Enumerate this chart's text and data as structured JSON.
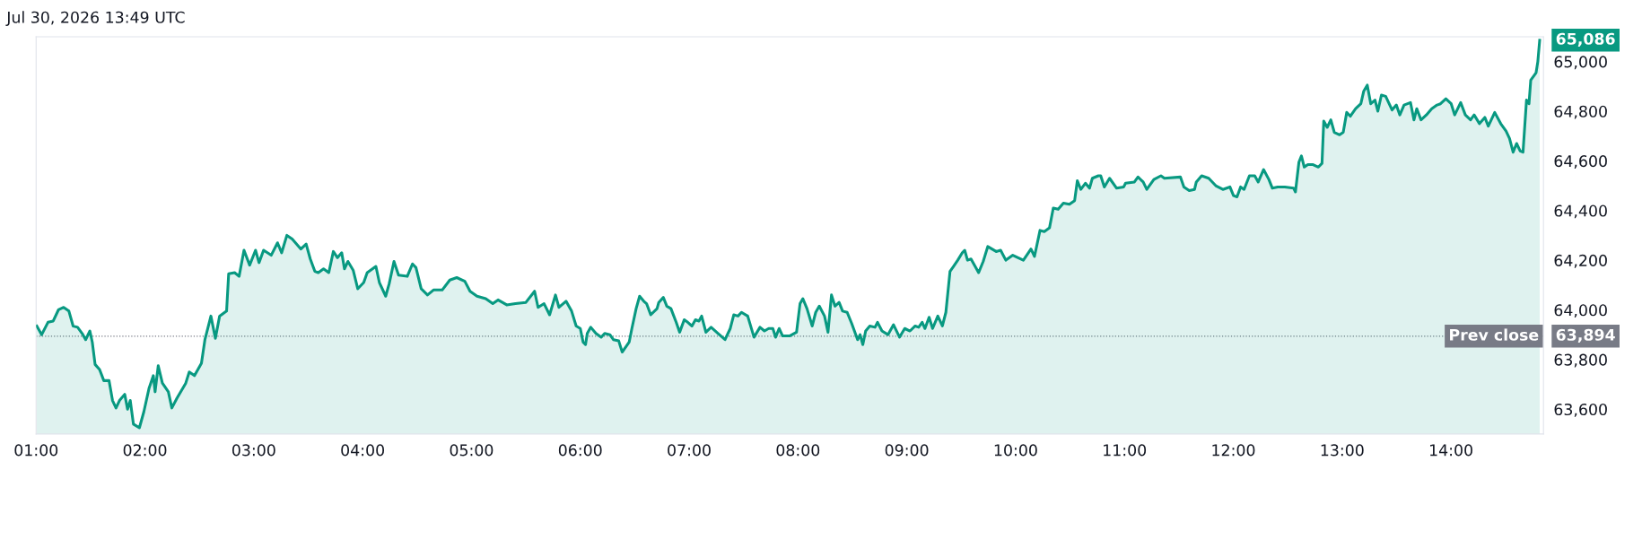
{
  "chart_data": {
    "type": "area",
    "annotations": [
      "Jul 30, 2026 13:49 UTC",
      "65,086",
      "63,894"
    ],
    "x": [
      1.006,
      1.051,
      1.109,
      1.157,
      1.205,
      1.253,
      1.301,
      1.34,
      1.381,
      1.423,
      1.455,
      1.494,
      1.516,
      1.542,
      1.583,
      1.622,
      1.67,
      1.702,
      1.734,
      1.766,
      1.814,
      1.84,
      1.865,
      1.894,
      1.949,
      1.99,
      2.038,
      2.077,
      2.093,
      2.122,
      2.16,
      2.215,
      2.247,
      2.295,
      2.375,
      2.407,
      2.455,
      2.519,
      2.551,
      2.606,
      2.647,
      2.686,
      2.75,
      2.769,
      2.824,
      2.865,
      2.91,
      2.962,
      3.016,
      3.048,
      3.09,
      3.16,
      3.218,
      3.256,
      3.304,
      3.353,
      3.433,
      3.481,
      3.519,
      3.561,
      3.593,
      3.641,
      3.689,
      3.731,
      3.769,
      3.808,
      3.833,
      3.865,
      3.913,
      3.955,
      4.01,
      4.042,
      4.122,
      4.154,
      4.212,
      4.244,
      4.288,
      4.33,
      4.41,
      4.458,
      4.49,
      4.538,
      4.596,
      4.651,
      4.731,
      4.801,
      4.865,
      4.939,
      4.987,
      5.051,
      5.131,
      5.196,
      5.244,
      5.324,
      5.404,
      5.5,
      5.58,
      5.612,
      5.667,
      5.718,
      5.772,
      5.804,
      5.869,
      5.92,
      5.962,
      6.0,
      6.026,
      6.048,
      6.064,
      6.096,
      6.144,
      6.192,
      6.224,
      6.272,
      6.304,
      6.353,
      6.385,
      6.449,
      6.474,
      6.513,
      6.545,
      6.583,
      6.609,
      6.647,
      6.705,
      6.721,
      6.763,
      6.795,
      6.833,
      6.881,
      6.913,
      6.955,
      6.987,
      7.026,
      7.058,
      7.09,
      7.115,
      7.154,
      7.202,
      7.266,
      7.33,
      7.378,
      7.41,
      7.449,
      7.481,
      7.538,
      7.596,
      7.651,
      7.692,
      7.731,
      7.769,
      7.795,
      7.827,
      7.859,
      7.923,
      7.987,
      8.019,
      8.045,
      8.083,
      8.131,
      8.163,
      8.196,
      8.244,
      8.276,
      8.308,
      8.34,
      8.378,
      8.41,
      8.452,
      8.494,
      8.548,
      8.571,
      8.596,
      8.622,
      8.66,
      8.708,
      8.731,
      8.772,
      8.827,
      8.878,
      8.933,
      8.981,
      9.029,
      9.077,
      9.109,
      9.141,
      9.167,
      9.205,
      9.237,
      9.285,
      9.327,
      9.359,
      9.397,
      9.429,
      9.468,
      9.51,
      9.532,
      9.558,
      9.59,
      9.66,
      9.702,
      9.744,
      9.821,
      9.862,
      9.91,
      9.974,
      10.071,
      10.141,
      10.173,
      10.224,
      10.263,
      10.311,
      10.346,
      10.391,
      10.439,
      10.494,
      10.542,
      10.567,
      10.599,
      10.641,
      10.679,
      10.705,
      10.76,
      10.782,
      10.815,
      10.863,
      10.928,
      10.993,
      11.01,
      11.091,
      11.124,
      11.172,
      11.205,
      11.27,
      11.335,
      11.367,
      11.514,
      11.546,
      11.595,
      11.644,
      11.66,
      11.709,
      11.774,
      11.839,
      11.904,
      11.969,
      12.002,
      12.034,
      12.067,
      12.099,
      12.148,
      12.197,
      12.229,
      12.278,
      12.327,
      12.359,
      12.408,
      12.473,
      12.554,
      12.571,
      12.603,
      12.626,
      12.652,
      12.685,
      12.733,
      12.782,
      12.815,
      12.831,
      12.863,
      12.896,
      12.928,
      12.977,
      13.01,
      13.042,
      13.075,
      13.124,
      13.172,
      13.198,
      13.231,
      13.263,
      13.302,
      13.328,
      13.361,
      13.4,
      13.459,
      13.498,
      13.53,
      13.569,
      13.628,
      13.66,
      13.686,
      13.725,
      13.774,
      13.823,
      13.872,
      13.904,
      13.953,
      14.002,
      14.034,
      14.089,
      14.132,
      14.18,
      14.213,
      14.262,
      14.311,
      14.343,
      14.402,
      14.457,
      14.506,
      14.538,
      14.571,
      14.603,
      14.636,
      14.662,
      14.694,
      14.717,
      14.733,
      14.782,
      14.798,
      14.815
    ],
    "series": [
      {
        "color": "#089981",
        "values": [
          63935,
          63900,
          63950,
          63955,
          64000,
          64010,
          63995,
          63935,
          63930,
          63905,
          63880,
          63915,
          63870,
          63780,
          63760,
          63715,
          63715,
          63635,
          63605,
          63635,
          63660,
          63600,
          63635,
          63540,
          63525,
          63590,
          63685,
          63735,
          63670,
          63775,
          63705,
          63670,
          63605,
          63645,
          63705,
          63750,
          63735,
          63785,
          63880,
          63975,
          63885,
          63975,
          63995,
          64145,
          64150,
          64135,
          64240,
          64180,
          64240,
          64190,
          64240,
          64220,
          64270,
          64230,
          64300,
          64285,
          64245,
          64265,
          64205,
          64155,
          64150,
          64165,
          64150,
          64235,
          64210,
          64230,
          64165,
          64195,
          64160,
          64085,
          64110,
          64150,
          64175,
          64110,
          64055,
          64105,
          64195,
          64140,
          64135,
          64185,
          64170,
          64085,
          64060,
          64080,
          64080,
          64120,
          64130,
          64115,
          64075,
          64055,
          64045,
          64025,
          64040,
          64020,
          64025,
          64030,
          64075,
          64010,
          64025,
          63980,
          64060,
          64010,
          64035,
          63995,
          63935,
          63925,
          63870,
          63860,
          63905,
          63930,
          63905,
          63890,
          63905,
          63900,
          63880,
          63875,
          63830,
          63870,
          63925,
          64005,
          64055,
          64035,
          64025,
          63980,
          64005,
          64030,
          64050,
          64015,
          64005,
          63950,
          63910,
          63960,
          63950,
          63935,
          63960,
          63955,
          63975,
          63910,
          63930,
          63905,
          63880,
          63925,
          63980,
          63975,
          63990,
          63975,
          63890,
          63930,
          63915,
          63925,
          63925,
          63890,
          63925,
          63895,
          63895,
          63910,
          64025,
          64045,
          64005,
          63935,
          63990,
          64015,
          63975,
          63910,
          64060,
          64015,
          64030,
          63995,
          63990,
          63945,
          63880,
          63900,
          63860,
          63915,
          63935,
          63930,
          63950,
          63915,
          63900,
          63940,
          63890,
          63925,
          63915,
          63935,
          63930,
          63950,
          63925,
          63970,
          63925,
          63975,
          63935,
          63990,
          64155,
          64175,
          64200,
          64230,
          64240,
          64200,
          64205,
          64150,
          64195,
          64255,
          64235,
          64240,
          64200,
          64220,
          64200,
          64245,
          64215,
          64320,
          64315,
          64330,
          64410,
          64405,
          64430,
          64425,
          64440,
          64520,
          64485,
          64510,
          64490,
          64530,
          64540,
          64540,
          64495,
          64530,
          64490,
          64495,
          64510,
          64515,
          64535,
          64515,
          64485,
          64525,
          64540,
          64530,
          64535,
          64495,
          64480,
          64485,
          64515,
          64540,
          64530,
          64500,
          64485,
          64495,
          64460,
          64455,
          64495,
          64485,
          64540,
          64540,
          64515,
          64565,
          64525,
          64490,
          64495,
          64495,
          64490,
          64475,
          64595,
          64620,
          64575,
          64585,
          64585,
          64575,
          64590,
          64760,
          64735,
          64765,
          64715,
          64705,
          64715,
          64795,
          64780,
          64810,
          64830,
          64880,
          64905,
          64830,
          64845,
          64800,
          64865,
          64860,
          64805,
          64825,
          64785,
          64825,
          64835,
          64765,
          64810,
          64765,
          64785,
          64810,
          64825,
          64830,
          64850,
          64830,
          64785,
          64835,
          64785,
          64765,
          64785,
          64750,
          64775,
          64740,
          64795,
          64750,
          64720,
          64690,
          64635,
          64670,
          64640,
          64635,
          64845,
          64830,
          64925,
          64955,
          65000,
          65086
        ]
      }
    ],
    "xlim": [
      1,
      14.85
    ],
    "xticks": [
      {
        "value": 1,
        "label": "01:00"
      },
      {
        "value": 2,
        "label": "02:00"
      },
      {
        "value": 3,
        "label": "03:00"
      },
      {
        "value": 4,
        "label": "04:00"
      },
      {
        "value": 5,
        "label": "05:00"
      },
      {
        "value": 6,
        "label": "06:00"
      },
      {
        "value": 7,
        "label": "07:00"
      },
      {
        "value": 8,
        "label": "08:00"
      },
      {
        "value": 9,
        "label": "09:00"
      },
      {
        "value": 10,
        "label": "10:00"
      },
      {
        "value": 11,
        "label": "11:00"
      },
      {
        "value": 12,
        "label": "12:00"
      },
      {
        "value": 13,
        "label": "13:00"
      },
      {
        "value": 14,
        "label": "14:00"
      }
    ],
    "ylim": [
      63500,
      65100
    ],
    "yticks": [
      {
        "value": 63600,
        "label": "63,600"
      },
      {
        "value": 63800,
        "label": "63,800"
      },
      {
        "value": 64000,
        "label": "64,000"
      },
      {
        "value": 64200,
        "label": "64,200"
      },
      {
        "value": 64400,
        "label": "64,400"
      },
      {
        "value": 64600,
        "label": "64,600"
      },
      {
        "value": 64800,
        "label": "64,800"
      },
      {
        "value": 65000,
        "label": "65,000"
      }
    ],
    "ref_lines": [
      {
        "axis": "y",
        "value": 63894,
        "label": "Prev close",
        "color": "#787b86",
        "line_style": "dotted"
      }
    ],
    "grid": false
  }
}
